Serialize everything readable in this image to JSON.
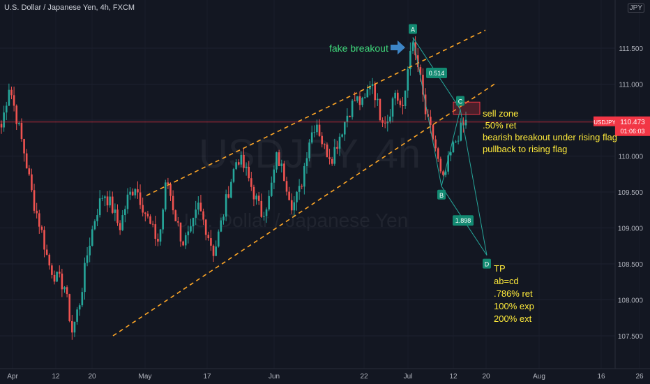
{
  "header": {
    "title": "U.S. Dollar / Japanese Yen, 4h, FXCM",
    "currency": "JPY"
  },
  "watermark": {
    "symbol": "USDJPY, 4h",
    "name": "U.S. Dollar / Japanese Yen"
  },
  "chart_data": {
    "type": "candlestick",
    "y_ticks": [
      107.5,
      108.0,
      108.5,
      109.0,
      109.5,
      110.0,
      110.5,
      111.0,
      111.5
    ],
    "y_tick_labels": [
      "107.500",
      "108.000",
      "108.500",
      "109.000",
      "109.500",
      "110.000",
      "110.500",
      "111.000",
      "111.500"
    ],
    "x_ticks": [
      "Apr",
      "12",
      "20",
      "May",
      "17",
      "Jun",
      "22",
      "Jul",
      "12",
      "20",
      "Aug",
      "16",
      "26"
    ],
    "last_price": {
      "symbol": "USDJPY",
      "value": 110.473,
      "label": "110.473",
      "countdown": "01:06:03"
    },
    "candle_path_key_prices": [
      [
        110.4,
        111.0,
        110.5,
        110.0,
        109.4,
        109.0,
        108.5,
        108.3,
        108.2,
        107.55,
        108.0,
        108.7,
        109.2,
        109.5,
        109.3,
        109.0,
        109.4,
        109.6,
        109.3,
        109.0,
        108.8,
        109.7,
        109.2,
        108.8,
        108.9,
        109.3,
        109.0,
        108.65,
        109.1,
        109.6,
        110.0,
        109.8,
        109.5,
        109.2,
        109.4,
        110.0,
        109.7,
        109.3,
        109.55,
        110.2,
        110.5,
        110.1,
        110.0,
        110.3,
        110.6,
        110.8,
        110.7,
        111.1,
        110.6,
        110.5,
        110.9,
        110.6,
        111.6,
        111.2,
        110.5,
        110.2,
        109.6,
        110.0,
        110.3,
        110.47
      ]
    ],
    "channel": {
      "upper_start": 109.45,
      "upper_end": 111.75,
      "lower_start": 107.5,
      "lower_end": 111.02
    },
    "harmonic_points": [
      {
        "label": "A",
        "value": 111.65
      },
      {
        "label": "B",
        "value": 109.58
      },
      {
        "label": "C",
        "value": 110.65
      },
      {
        "label": "D",
        "value": 108.62
      }
    ],
    "ratios": [
      "0.514",
      "1.898"
    ],
    "sell_zone": {
      "top": 110.75,
      "bottom": 110.58
    },
    "annotations": {
      "fake_breakout": "fake breakout",
      "sell_notes": [
        "sell zone",
        ".50% ret",
        "bearish breakout under rising flag",
        "pullback to rising flag"
      ],
      "tp_notes": [
        "TP",
        "ab=cd",
        ".786% ret",
        "100% exp",
        "200% ext"
      ]
    },
    "colors": {
      "up": "#26a69a",
      "down": "#ef5350",
      "channel": "#ffa726",
      "pattern": "#26a69a",
      "badge": "#138a72",
      "annotation_green": "#3fd77a",
      "annotation_yellow": "#ffeb3b",
      "arrow": "#3d85c6",
      "price_tag": "#f23645"
    }
  }
}
